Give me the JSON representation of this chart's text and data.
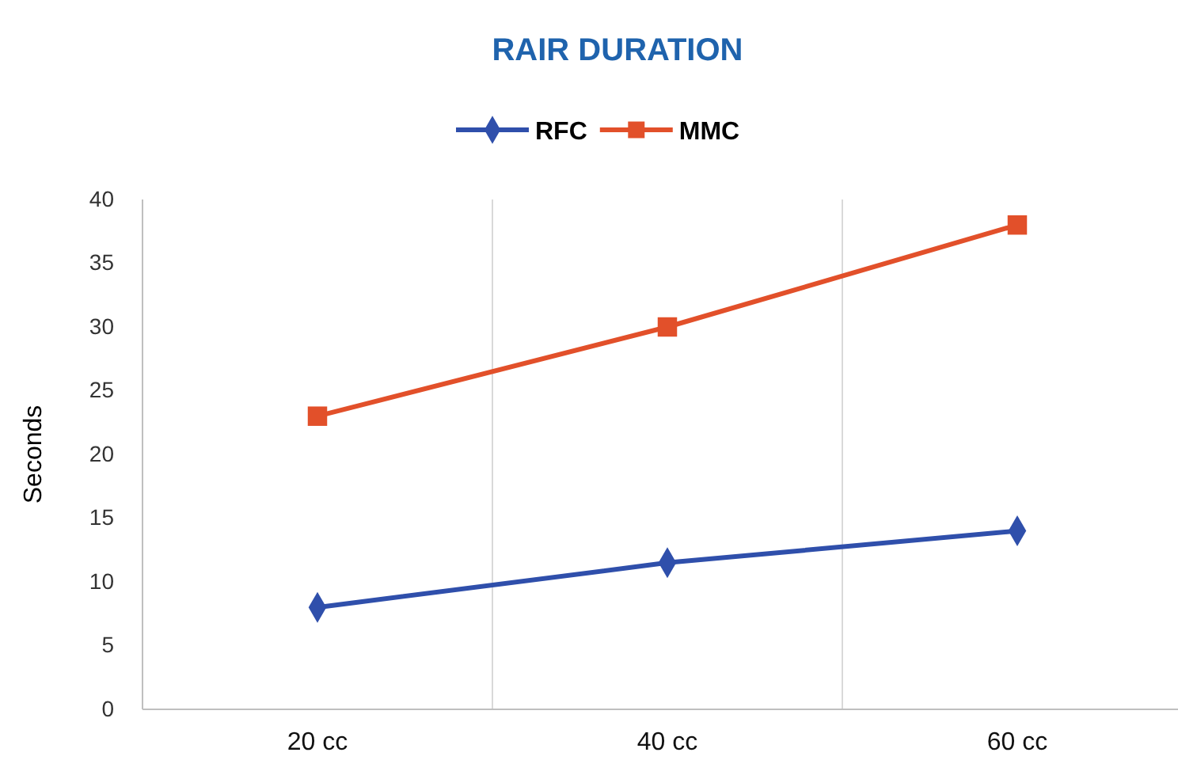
{
  "chart_data": {
    "type": "line",
    "title": "RAIR DURATION",
    "ylabel": "Seconds",
    "categories": [
      "20 cc",
      "40 cc",
      "60 cc"
    ],
    "series": [
      {
        "name": "RFC",
        "color": "#2f4fab",
        "values": [
          8,
          11.5,
          14
        ],
        "marker": "diamond"
      },
      {
        "name": "MMC",
        "color": "#e2502a",
        "values": [
          23,
          30,
          38
        ],
        "marker": "square"
      }
    ],
    "ylim": [
      0,
      40
    ],
    "yticks": [
      0,
      5,
      10,
      15,
      20,
      25,
      30,
      35,
      40
    ],
    "grid": "x",
    "legend": "top",
    "line_style": "solid"
  }
}
